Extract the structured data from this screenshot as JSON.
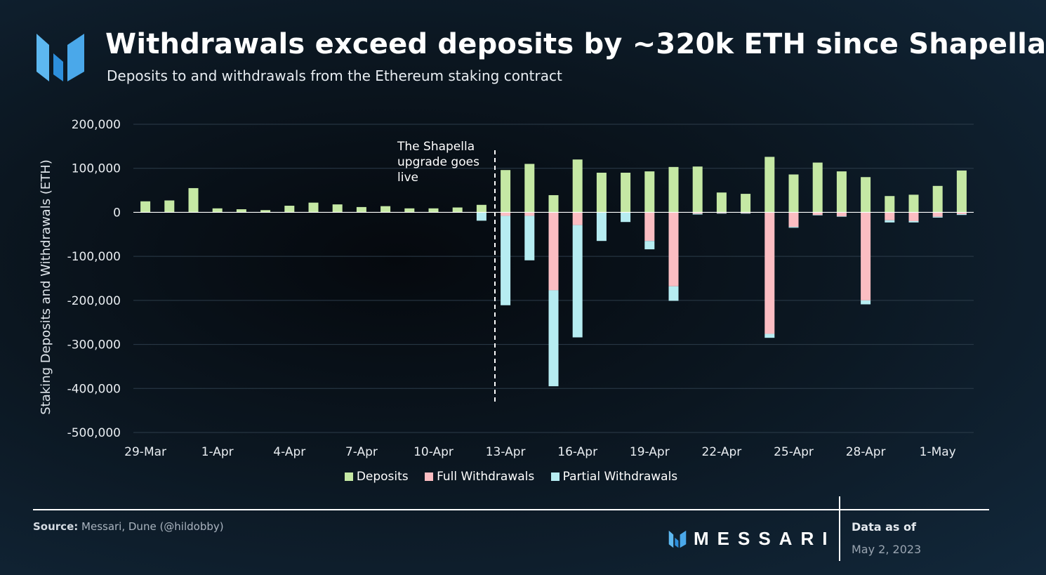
{
  "header": {
    "title": "Withdrawals exceed deposits by ~320k ETH since Shapella",
    "subtitle": "Deposits to and withdrawals from the Ethereum staking contract"
  },
  "colors": {
    "deposits": "#c5e8a4",
    "full_withdrawals": "#fbbdc2",
    "partial_withdrawals": "#b6ecf1",
    "gridline": "#2c3c4a",
    "axis_text": "#e9edf1",
    "logo_blue": "#3aa0e6"
  },
  "chart_data": {
    "type": "bar",
    "stacked": true,
    "ylabel": "Staking Deposits and Withdrawals (ETH)",
    "xlabel": "",
    "ylim": [
      -500000,
      200000
    ],
    "yticks": [
      200000,
      100000,
      0,
      -100000,
      -200000,
      -300000,
      -400000,
      -500000
    ],
    "ytick_labels": [
      "200,000",
      "100,000",
      "0",
      "-100,000",
      "-200,000",
      "-300,000",
      "-400,000",
      "-500,000"
    ],
    "categories": [
      "29-Mar",
      "30-Mar",
      "31-Mar",
      "1-Apr",
      "2-Apr",
      "3-Apr",
      "4-Apr",
      "5-Apr",
      "6-Apr",
      "7-Apr",
      "8-Apr",
      "9-Apr",
      "10-Apr",
      "11-Apr",
      "12-Apr",
      "13-Apr",
      "14-Apr",
      "15-Apr",
      "16-Apr",
      "17-Apr",
      "18-Apr",
      "19-Apr",
      "20-Apr",
      "21-Apr",
      "22-Apr",
      "23-Apr",
      "24-Apr",
      "25-Apr",
      "26-Apr",
      "27-Apr",
      "28-Apr",
      "29-Apr",
      "30-Apr",
      "1-May",
      "2-May"
    ],
    "xtick_labels": [
      "29-Mar",
      "1-Apr",
      "4-Apr",
      "7-Apr",
      "10-Apr",
      "13-Apr",
      "16-Apr",
      "19-Apr",
      "22-Apr",
      "25-Apr",
      "28-Apr",
      "1-May"
    ],
    "grid": true,
    "legend_position": "bottom-center",
    "series": [
      {
        "name": "Deposits",
        "values": [
          25000,
          27000,
          55000,
          9000,
          7000,
          5000,
          15000,
          22000,
          18000,
          12000,
          14000,
          9000,
          9000,
          11000,
          17000,
          96000,
          110000,
          39000,
          120000,
          90000,
          90000,
          93000,
          103000,
          104000,
          45000,
          42000,
          126000,
          86000,
          113000,
          93000,
          80000,
          37000,
          40000,
          60000,
          95000
        ]
      },
      {
        "name": "Full Withdrawals",
        "values": [
          0,
          0,
          0,
          0,
          0,
          0,
          0,
          0,
          0,
          0,
          0,
          0,
          0,
          0,
          0,
          -8000,
          -8000,
          -177000,
          -29000,
          0,
          0,
          -65000,
          -168000,
          -3000,
          -2000,
          -2000,
          -276000,
          -33000,
          -6000,
          -9000,
          -200000,
          -18000,
          -20000,
          -10000,
          -4000
        ]
      },
      {
        "name": "Partial Withdrawals",
        "values": [
          0,
          0,
          0,
          0,
          0,
          0,
          0,
          0,
          0,
          0,
          0,
          0,
          0,
          0,
          -19000,
          -203000,
          -101000,
          -218000,
          -255000,
          -65000,
          -22000,
          -19000,
          -33000,
          -2000,
          -1000,
          -1000,
          -9000,
          -2000,
          -1000,
          -1000,
          -9000,
          -5000,
          -3000,
          -2000,
          -2000
        ]
      }
    ],
    "annotations": [
      {
        "text_lines": [
          "The Shapella",
          "upgrade goes",
          "live"
        ],
        "between": [
          "12-Apr",
          "13-Apr"
        ],
        "style": "dashed vertical line"
      }
    ]
  },
  "footer": {
    "source_label": "Source:",
    "source_text": " Messari, Dune (@hildobby)",
    "brand": "MESSARI",
    "asof_label": "Data as of",
    "asof_date": "May 2, 2023"
  }
}
